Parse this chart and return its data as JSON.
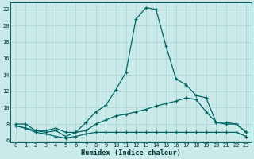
{
  "xlabel": "Humidex (Indice chaleur)",
  "xlim": [
    -0.5,
    23.5
  ],
  "ylim": [
    5.8,
    22.8
  ],
  "bg_color": "#caeaea",
  "grid_color": "#aad4d4",
  "line_color": "#006666",
  "line1_y": [
    8.0,
    8.0,
    7.2,
    7.0,
    7.2,
    6.5,
    7.0,
    8.2,
    9.5,
    10.3,
    12.2,
    14.3,
    20.8,
    22.2,
    22.0,
    17.5,
    13.5,
    12.8,
    11.5,
    11.2,
    8.2,
    8.2,
    8.0,
    7.0
  ],
  "line2_y": [
    7.8,
    7.5,
    7.2,
    7.2,
    7.5,
    7.0,
    7.0,
    7.2,
    8.0,
    8.5,
    9.0,
    9.2,
    9.5,
    9.8,
    10.2,
    10.5,
    10.8,
    11.2,
    11.0,
    9.5,
    8.2,
    8.0,
    8.0,
    7.0
  ],
  "line3_y": [
    7.8,
    7.5,
    7.0,
    6.8,
    6.5,
    6.3,
    6.5,
    6.8,
    7.0,
    7.0,
    7.0,
    7.0,
    7.0,
    7.0,
    7.0,
    7.0,
    7.0,
    7.0,
    7.0,
    7.0,
    7.0,
    7.0,
    7.0,
    6.5
  ],
  "yticks": [
    6,
    8,
    10,
    12,
    14,
    16,
    18,
    20,
    22
  ],
  "xticks": [
    0,
    1,
    2,
    3,
    4,
    5,
    6,
    7,
    8,
    9,
    10,
    11,
    12,
    13,
    14,
    15,
    16,
    17,
    18,
    19,
    20,
    21,
    22,
    23
  ]
}
